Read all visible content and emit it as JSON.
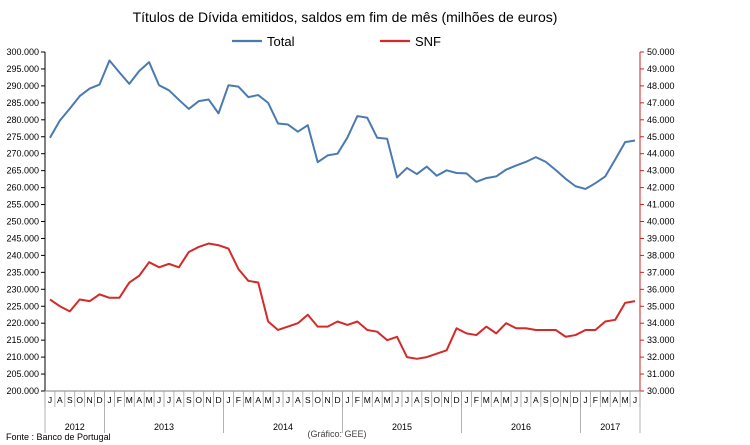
{
  "chart_data": {
    "type": "line",
    "title": "Títulos de Dívida emitidos, saldos em fim de mês  (milhões de euros)",
    "legend_position": "top",
    "grid": false,
    "source_note": "Fonte : Banco de Portugal",
    "credit_note": "(Gráfico: GEE)",
    "x_month_labels": [
      "J",
      "A",
      "S",
      "O",
      "N",
      "D",
      "J",
      "F",
      "M",
      "A",
      "M",
      "J",
      "J",
      "A",
      "S",
      "O",
      "N",
      "D",
      "J",
      "F",
      "M",
      "A",
      "M",
      "J",
      "J",
      "A",
      "S",
      "O",
      "N",
      "D",
      "J",
      "F",
      "M",
      "A",
      "M",
      "J",
      "J",
      "A",
      "S",
      "O",
      "N",
      "D",
      "J",
      "F",
      "M",
      "A",
      "M",
      "J",
      "J",
      "A",
      "S",
      "O",
      "N",
      "D",
      "J",
      "F",
      "M",
      "A",
      "M",
      "J"
    ],
    "year_labels": [
      "2012",
      "2013",
      "2014",
      "2015",
      "2016",
      "2017"
    ],
    "y_left": {
      "min": 200000,
      "max": 300000,
      "step": 5000,
      "tick_labels": [
        "200.000",
        "205.000",
        "210.000",
        "215.000",
        "220.000",
        "225.000",
        "230.000",
        "235.000",
        "240.000",
        "245.000",
        "250.000",
        "255.000",
        "260.000",
        "265.000",
        "270.000",
        "275.000",
        "280.000",
        "285.000",
        "290.000",
        "295.000",
        "300.000"
      ]
    },
    "y_right": {
      "min": 30000,
      "max": 50000,
      "step": 1000,
      "tick_labels": [
        "30.000",
        "31.000",
        "32.000",
        "33.000",
        "34.000",
        "35.000",
        "36.000",
        "37.000",
        "38.000",
        "39.000",
        "40.000",
        "41.000",
        "42.000",
        "43.000",
        "44.000",
        "45.000",
        "46.000",
        "47.000",
        "48.000",
        "49.000",
        "50.000"
      ]
    },
    "series": [
      {
        "name": "Total",
        "axis": "left",
        "color": "#4a7ab0",
        "values": [
          274700,
          279800,
          283300,
          287000,
          289200,
          290400,
          297500,
          294000,
          290600,
          294400,
          297000,
          290200,
          288700,
          285900,
          283200,
          285500,
          286000,
          281900,
          290200,
          289800,
          286700,
          287300,
          285000,
          278900,
          278600,
          276500,
          278400,
          267500,
          269500,
          270000,
          274800,
          281100,
          280600,
          274700,
          274400,
          263000,
          265800,
          264000,
          266200,
          263500,
          265100,
          264300,
          264200,
          261700,
          262800,
          263300,
          265300,
          266500,
          267600,
          269000,
          267600,
          265200,
          262600,
          260400,
          259600,
          261300,
          263300,
          268300,
          273400,
          273900
        ]
      },
      {
        "name": "SNF",
        "axis": "right",
        "color": "#d42a2a",
        "values": [
          35.4,
          35.0,
          34.7,
          35.4,
          35.3,
          35.7,
          35.5,
          35.5,
          36.4,
          36.8,
          37.6,
          37.3,
          37.5,
          37.3,
          38.2,
          38.5,
          38.7,
          38.6,
          38.4,
          37.2,
          36.5,
          36.4,
          34.1,
          33.6,
          33.8,
          34.0,
          34.5,
          33.8,
          33.8,
          34.1,
          33.9,
          34.1,
          33.6,
          33.5,
          33.0,
          33.2,
          32.0,
          31.9,
          32.0,
          32.2,
          32.4,
          33.7,
          33.4,
          33.3,
          33.8,
          33.4,
          34.0,
          33.7,
          33.7,
          33.6,
          33.6,
          33.6,
          33.2,
          33.3,
          33.6,
          33.6,
          34.1,
          34.2,
          35.2,
          35.3
        ]
      }
    ]
  }
}
